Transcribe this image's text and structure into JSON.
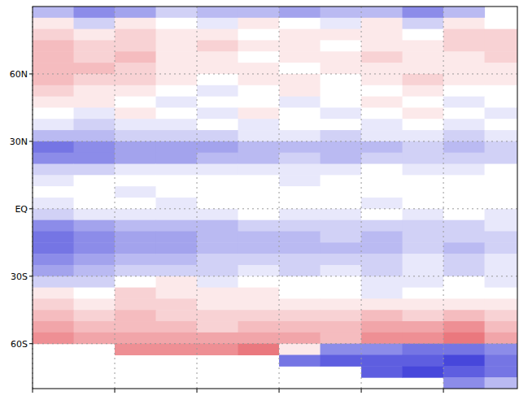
{
  "chart_data": {
    "type": "heatmap",
    "xlim": [
      0,
      5.9
    ],
    "xticks": [
      0,
      1,
      2,
      3,
      4,
      5
    ],
    "ylim": [
      -80,
      90
    ],
    "yticks": [
      {
        "value": 60,
        "label": "60N"
      },
      {
        "value": 30,
        "label": "30N"
      },
      {
        "value": 0,
        "label": "EQ"
      },
      {
        "value": -30,
        "label": "30S"
      },
      {
        "value": -60,
        "label": "60S"
      }
    ],
    "tick_labels": "y",
    "grid": true,
    "zlim": [
      -1,
      1
    ],
    "x_edges": [
      0,
      0.5,
      1,
      1.5,
      2,
      2.5,
      3,
      3.5,
      4,
      4.5,
      5,
      5.5,
      5.9
    ],
    "y_edges": [
      90,
      85,
      80,
      75,
      70,
      65,
      60,
      55,
      50,
      45,
      40,
      35,
      30,
      25,
      20,
      15,
      10,
      5,
      0,
      -5,
      -10,
      -15,
      -20,
      -25,
      -30,
      -35,
      -40,
      -45,
      -50,
      -55,
      -60,
      -65,
      -70,
      -75,
      -80
    ],
    "cells": [
      [
        -0.3,
        -0.5,
        -0.4,
        -0.2,
        -0.3,
        -0.3,
        -0.4,
        -0.3,
        -0.3,
        -0.5,
        -0.3,
        null
      ],
      [
        0.1,
        -0.2,
        0.1,
        0.0,
        -0.1,
        0.1,
        0.0,
        -0.1,
        0.1,
        -0.2,
        0.1,
        0.0
      ],
      [
        0.2,
        0.1,
        0.2,
        0.1,
        0.1,
        0.0,
        0.1,
        0.1,
        0.1,
        0.0,
        0.2,
        0.2
      ],
      [
        0.3,
        0.2,
        0.2,
        0.1,
        0.2,
        0.1,
        0.1,
        0.0,
        0.1,
        0.1,
        0.2,
        0.2
      ],
      [
        0.3,
        0.2,
        0.3,
        0.1,
        0.1,
        0.0,
        0.1,
        0.1,
        0.2,
        0.1,
        0.1,
        0.2
      ],
      [
        0.3,
        0.3,
        0.2,
        0.1,
        0.1,
        0.1,
        0.0,
        0.1,
        0.1,
        0.1,
        0.1,
        0.1
      ],
      [
        0.3,
        0.2,
        0.2,
        0.1,
        0.0,
        0.1,
        0.1,
        0.0,
        0.1,
        0.2,
        0.1,
        0.1
      ],
      [
        0.2,
        0.1,
        0.1,
        0.0,
        -0.1,
        0.0,
        0.1,
        0.0,
        0.0,
        0.1,
        0.0,
        0.0
      ],
      [
        0.1,
        0.1,
        0.0,
        -0.1,
        0.0,
        0.0,
        -0.1,
        0.0,
        0.1,
        0.0,
        -0.1,
        0.0
      ],
      [
        0.0,
        -0.1,
        0.1,
        0.0,
        -0.1,
        0.1,
        0.0,
        -0.1,
        0.0,
        0.1,
        0.0,
        -0.1
      ],
      [
        -0.1,
        -0.2,
        -0.1,
        -0.1,
        0.0,
        -0.1,
        0.0,
        0.0,
        -0.1,
        0.0,
        -0.1,
        0.0
      ],
      [
        -0.3,
        -0.3,
        -0.2,
        -0.2,
        -0.2,
        -0.1,
        -0.1,
        -0.2,
        -0.1,
        -0.1,
        -0.2,
        -0.1
      ],
      [
        -0.6,
        -0.5,
        -0.4,
        -0.4,
        -0.4,
        -0.3,
        -0.3,
        -0.3,
        -0.3,
        -0.2,
        -0.3,
        -0.2
      ],
      [
        -0.5,
        -0.5,
        -0.4,
        -0.4,
        -0.3,
        -0.3,
        -0.2,
        -0.3,
        -0.2,
        -0.2,
        -0.2,
        -0.2
      ],
      [
        -0.2,
        -0.2,
        -0.1,
        -0.1,
        -0.1,
        -0.1,
        -0.1,
        -0.1,
        0.0,
        -0.1,
        -0.1,
        0.0
      ],
      [
        -0.1,
        0.0,
        0.0,
        0.0,
        0.0,
        0.0,
        -0.1,
        0.0,
        0.0,
        0.0,
        0.0,
        0.0
      ],
      [
        0.0,
        0.0,
        -0.1,
        0.0,
        0.0,
        0.0,
        0.0,
        0.0,
        0.0,
        0.0,
        0.0,
        0.0
      ],
      [
        -0.1,
        0.0,
        0.0,
        -0.1,
        0.0,
        0.0,
        0.0,
        0.0,
        -0.1,
        0.0,
        0.0,
        0.0
      ],
      [
        -0.2,
        -0.1,
        -0.1,
        -0.1,
        -0.1,
        0.0,
        -0.1,
        -0.1,
        0.0,
        -0.1,
        0.0,
        -0.1
      ],
      [
        -0.5,
        -0.4,
        -0.3,
        -0.3,
        -0.3,
        -0.2,
        -0.2,
        -0.2,
        -0.2,
        -0.2,
        -0.2,
        -0.1
      ],
      [
        -0.6,
        -0.5,
        -0.4,
        -0.4,
        -0.3,
        -0.3,
        -0.3,
        -0.2,
        -0.3,
        -0.2,
        -0.2,
        -0.2
      ],
      [
        -0.6,
        -0.5,
        -0.4,
        -0.4,
        -0.3,
        -0.3,
        -0.3,
        -0.3,
        -0.3,
        -0.2,
        -0.3,
        -0.2
      ],
      [
        -0.5,
        -0.4,
        -0.3,
        -0.3,
        -0.2,
        -0.2,
        -0.2,
        -0.2,
        -0.2,
        -0.1,
        -0.2,
        -0.1
      ],
      [
        -0.4,
        -0.3,
        -0.2,
        -0.2,
        -0.2,
        -0.1,
        -0.2,
        -0.1,
        -0.2,
        -0.1,
        -0.2,
        -0.1
      ],
      [
        -0.2,
        -0.2,
        0.0,
        0.1,
        -0.1,
        0.0,
        0.0,
        0.0,
        -0.1,
        -0.1,
        0.0,
        -0.1
      ],
      [
        0.1,
        0.0,
        0.2,
        0.1,
        0.1,
        0.1,
        0.0,
        0.0,
        -0.1,
        0.0,
        0.0,
        0.0
      ],
      [
        0.2,
        0.1,
        0.2,
        0.2,
        0.1,
        0.1,
        0.1,
        0.1,
        0.1,
        0.1,
        0.1,
        0.1
      ],
      [
        0.3,
        0.2,
        0.3,
        0.2,
        0.2,
        0.2,
        0.2,
        0.2,
        0.3,
        0.2,
        0.3,
        0.2
      ],
      [
        0.4,
        0.3,
        0.3,
        0.3,
        0.2,
        0.3,
        0.3,
        0.3,
        0.4,
        0.4,
        0.5,
        0.3
      ],
      [
        0.5,
        0.4,
        0.4,
        0.4,
        0.4,
        0.4,
        0.4,
        0.3,
        0.5,
        0.5,
        0.6,
        0.4
      ],
      [
        null,
        null,
        0.5,
        0.5,
        0.5,
        0.6,
        0.1,
        -0.5,
        -0.5,
        -0.6,
        -0.6,
        -0.5
      ],
      [
        null,
        null,
        null,
        null,
        null,
        null,
        -0.6,
        -0.7,
        -0.7,
        -0.7,
        -0.8,
        -0.6
      ],
      [
        null,
        null,
        null,
        null,
        null,
        null,
        null,
        null,
        -0.7,
        -0.8,
        -0.7,
        -0.6
      ],
      [
        null,
        null,
        null,
        null,
        null,
        null,
        null,
        null,
        null,
        null,
        -0.5,
        -0.3
      ]
    ]
  }
}
